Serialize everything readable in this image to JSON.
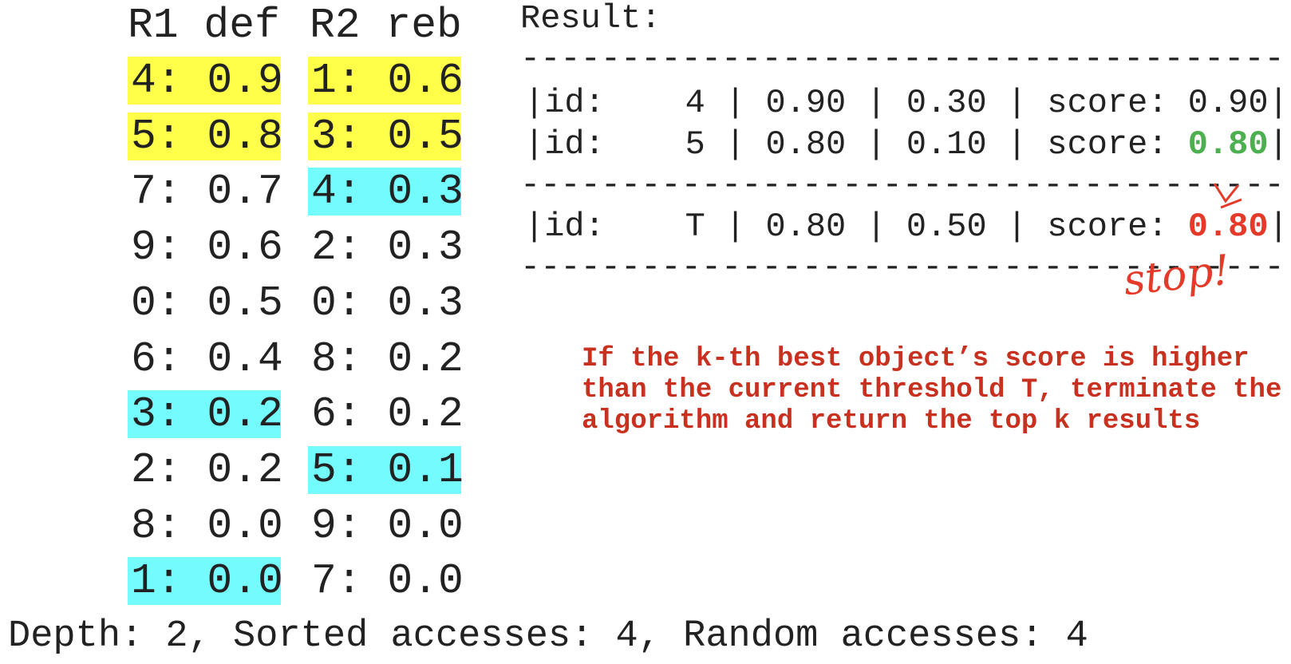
{
  "table": {
    "header": [
      "R1 def",
      "R2 reb"
    ],
    "rows": [
      [
        {
          "text": "4: 0.9",
          "highlight": "#ffff4a"
        },
        {
          "text": "1: 0.6",
          "highlight": "#ffff4a"
        }
      ],
      [
        {
          "text": "5: 0.8",
          "highlight": "#ffff4a"
        },
        {
          "text": "3: 0.5",
          "highlight": "#ffff4a"
        }
      ],
      [
        {
          "text": "7: 0.7"
        },
        {
          "text": "4: 0.3",
          "highlight": "#74fbfd"
        }
      ],
      [
        {
          "text": "9: 0.6"
        },
        {
          "text": "2: 0.3"
        }
      ],
      [
        {
          "text": "0: 0.5"
        },
        {
          "text": "0: 0.3"
        }
      ],
      [
        {
          "text": "6: 0.4"
        },
        {
          "text": "8: 0.2"
        }
      ],
      [
        {
          "text": "3: 0.2",
          "highlight": "#74fbfd"
        },
        {
          "text": "6: 0.2"
        }
      ],
      [
        {
          "text": "2: 0.2"
        },
        {
          "text": "5: 0.1",
          "highlight": "#74fbfd"
        }
      ],
      [
        {
          "text": "8: 0.0"
        },
        {
          "text": "9: 0.0"
        }
      ],
      [
        {
          "text": "1: 0.0",
          "highlight": "#74fbfd"
        },
        {
          "text": "7: 0.0"
        }
      ]
    ]
  },
  "result": {
    "title": "Result:",
    "separator": "--------------------------------------",
    "rows": [
      {
        "text": "|id:    4 | 0.90 | 0.30 | score: ",
        "score": "0.90",
        "end": "|"
      },
      {
        "text": "|id:    5 | 0.80 | 0.10 | score: ",
        "score": "0.80",
        "end": "|",
        "score_color": "#4caf50"
      },
      {
        "text": "|id:    T | 0.80 | 0.50 | score: ",
        "score": "0.80",
        "end": "|",
        "score_color": "#e53a2a"
      }
    ],
    "annotation": "stop!"
  },
  "note": {
    "lines": [
      "If the k-th best object’s score is higher",
      "than the current threshold T, terminate the",
      "algorithm and return the top k results"
    ]
  },
  "footer": "Depth: 2, Sorted accesses: 4, Random accesses: 4"
}
